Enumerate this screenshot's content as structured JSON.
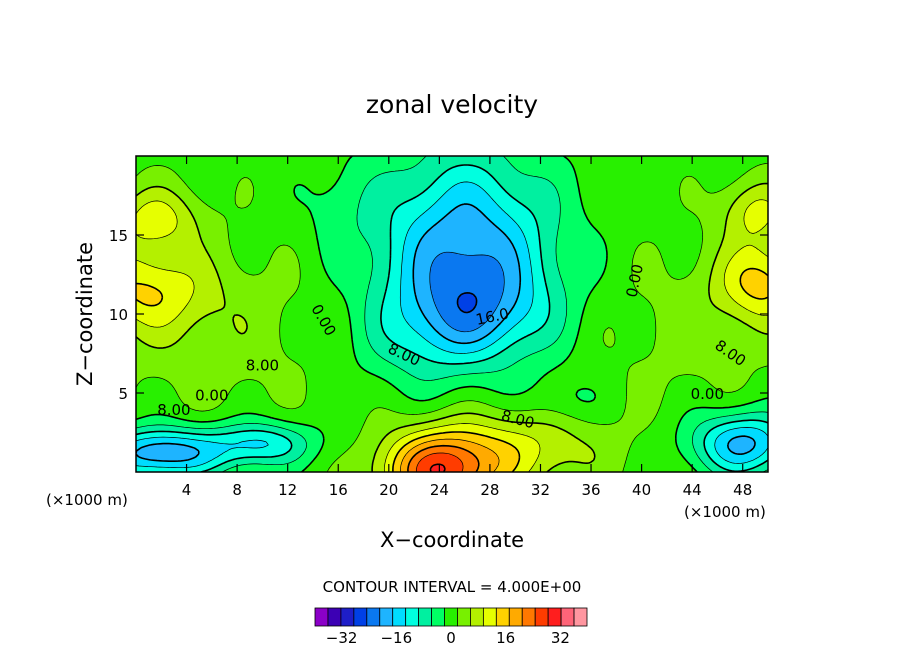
{
  "chart_data": {
    "type": "heatmap",
    "title": "zonal velocity",
    "xlabel": "X−coordinate",
    "ylabel": "Z−coordinate",
    "x_unit_left": "(×1000 m)",
    "x_unit_right": "(×1000 m)",
    "xlim": [
      0,
      50
    ],
    "ylim": [
      0,
      20
    ],
    "x_ticks": [
      4,
      8,
      12,
      16,
      20,
      24,
      28,
      32,
      36,
      40,
      44,
      48
    ],
    "y_ticks": [
      5,
      10,
      15
    ],
    "contour_interval_text": "CONTOUR INTERVAL = 4.000E+00",
    "contour_interval": 4,
    "contour_labels": [
      {
        "text": "0.00",
        "x": 14.8,
        "z": 9.6,
        "rotate": 60
      },
      {
        "text": "8.00",
        "x": 10.0,
        "z": 6.7,
        "rotate": 0
      },
      {
        "text": "0.00",
        "x": 6.0,
        "z": 4.8,
        "rotate": 0
      },
      {
        "text": "8.00",
        "x": 3.0,
        "z": 3.9,
        "rotate": 0
      },
      {
        "text": "8.00",
        "x": 21.2,
        "z": 7.4,
        "rotate": 25
      },
      {
        "text": "16.0",
        "x": 28.2,
        "z": 9.8,
        "rotate": -12
      },
      {
        "text": "8.00",
        "x": 30.2,
        "z": 3.3,
        "rotate": 15
      },
      {
        "text": "0.00",
        "x": 39.5,
        "z": 12.1,
        "rotate": -78
      },
      {
        "text": "8.00",
        "x": 47.0,
        "z": 7.5,
        "rotate": 35
      },
      {
        "text": "0.00",
        "x": 45.2,
        "z": 4.9,
        "rotate": 0
      }
    ],
    "colorbar": {
      "levels": [
        -36,
        -32,
        -28,
        -24,
        -20,
        -16,
        -12,
        -8,
        -4,
        0,
        4,
        8,
        12,
        16,
        20,
        24,
        28,
        32,
        36
      ],
      "colors": [
        "#8b00c8",
        "#3c00b4",
        "#1e1ec8",
        "#0040e6",
        "#0a78f0",
        "#1eb4ff",
        "#00dcff",
        "#00ffe0",
        "#00f0a0",
        "#00ff64",
        "#28f000",
        "#78f000",
        "#b4f000",
        "#e6ff00",
        "#ffd200",
        "#ffaa00",
        "#ff7800",
        "#ff3c00",
        "#ff1e1e",
        "#ff6478",
        "#ff96a0"
      ],
      "tick_labels": [
        "−32",
        "−16",
        "0",
        "16",
        "32"
      ],
      "tick_values": [
        -32,
        -16,
        0,
        16,
        32
      ]
    }
  }
}
